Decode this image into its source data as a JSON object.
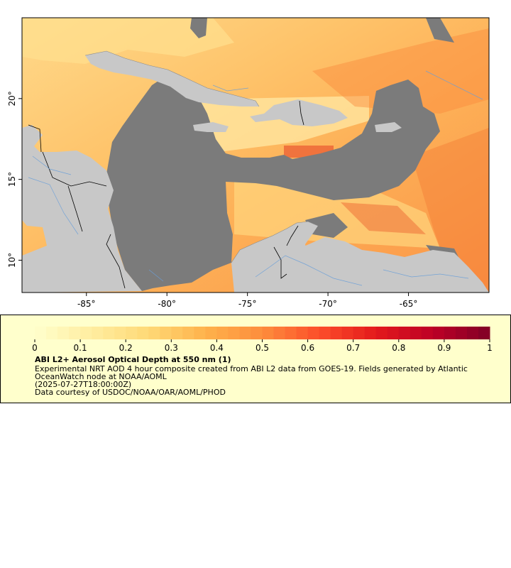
{
  "map": {
    "lon_ticks": [
      {
        "lon": -85,
        "label": "-85°"
      },
      {
        "lon": -80,
        "label": "-80°"
      },
      {
        "lon": -75,
        "label": "-75°"
      },
      {
        "lon": -70,
        "label": "-70°"
      },
      {
        "lon": -65,
        "label": "-65°"
      }
    ],
    "lat_ticks": [
      {
        "lat": 20,
        "label": "20°"
      },
      {
        "lat": 15,
        "label": "15°"
      },
      {
        "lat": 10,
        "label": "10°"
      }
    ],
    "lon_range": [
      -89,
      -60
    ],
    "lat_range": [
      8,
      25
    ],
    "colors": {
      "ocean_nodata": "#7b7b7b",
      "land": "#c8c8c8",
      "border": "#000000",
      "river": "#6a9fd8"
    }
  },
  "legend": {
    "title": "ABI L2+ Aerosol Optical Depth at 550 nm (1)",
    "description_line1": "Experimental NRT AOD 4 hour composite created from ABI L2 data from GOES-19. Fields generated by Atlantic",
    "description_line2": "OceanWatch node at NOAA/AOML",
    "time": "(2025-07-27T18:00:00Z)",
    "credit": "Data courtesy of USDOC/NOAA/OAR/AOML/PHOD",
    "ticks": [
      "0",
      "0.1",
      "0.2",
      "0.3",
      "0.4",
      "0.5",
      "0.6",
      "0.7",
      "0.8",
      "0.9",
      "1"
    ],
    "colormap": [
      "#ffffcc",
      "#ffeda0",
      "#fed976",
      "#feb24c",
      "#fd8d3c",
      "#fc4e2a",
      "#e31a1c",
      "#bd0026",
      "#800026"
    ]
  }
}
